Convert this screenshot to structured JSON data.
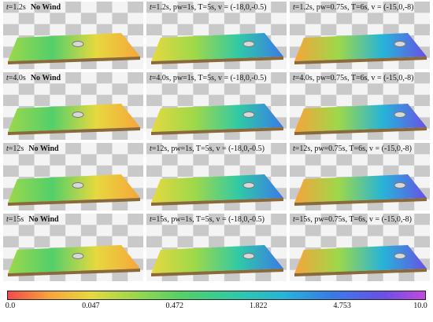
{
  "panels": [
    {
      "time": "1.2s",
      "label": "No Wind",
      "type": "nowind",
      "params": ""
    },
    {
      "time": "1.2s",
      "label": "",
      "type": "wind1",
      "params": "pw=1s, T=5s, v = (-18,0,-0.5)"
    },
    {
      "time": "1.2s",
      "label": "",
      "type": "wind2",
      "params": "pw=0.75s, T=6s, v = (-15,0,-8)"
    },
    {
      "time": "4.0s",
      "label": "No Wind",
      "type": "nowind",
      "params": ""
    },
    {
      "time": "4.0s",
      "label": "",
      "type": "wind1",
      "params": "pw=1s, T=5s, v = (-18,0,-0.5)"
    },
    {
      "time": "4.0s",
      "label": "",
      "type": "wind2",
      "params": "pw=0.75s, T=6s, v = (-15,0,-8)"
    },
    {
      "time": "12s",
      "label": "No Wind",
      "type": "nowind",
      "params": ""
    },
    {
      "time": "12s",
      "label": "",
      "type": "wind1",
      "params": "pw=1s, T=5s, v = (-18,0,-0.5)"
    },
    {
      "time": "12s",
      "label": "",
      "type": "wind2",
      "params": "pw=0.75s, T=6s, v = (-15,0,-8)"
    },
    {
      "time": "15s",
      "label": "No Wind",
      "type": "nowind",
      "params": ""
    },
    {
      "time": "15s",
      "label": "",
      "type": "wind1",
      "params": "pw=1s, T=5s, v = (-18,0,-0.5)"
    },
    {
      "time": "15s",
      "label": "",
      "type": "wind2",
      "params": "pw=0.75s, T=6s, v = (-15,0,-8)"
    }
  ],
  "colorbar": {
    "ticks": [
      "0.0",
      "0.047",
      "0.472",
      "1.822",
      "4.753",
      "10.0"
    ],
    "colors": [
      "#f24b4b",
      "#f6a53a",
      "#e6d93f",
      "#9dd84a",
      "#53cf6a",
      "#2fc9a8",
      "#26b4d8",
      "#3a79e8",
      "#6a4fe6",
      "#c24ae0"
    ]
  }
}
